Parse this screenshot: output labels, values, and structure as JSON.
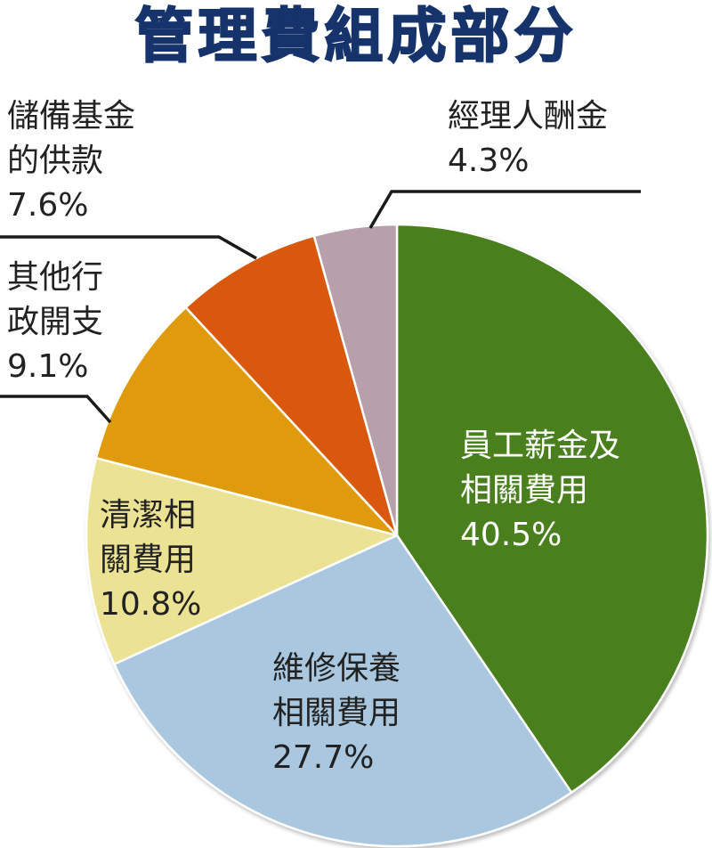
{
  "chart_data": {
    "type": "pie",
    "title": "管理費組成部分",
    "start": "12 o'clock, clockwise",
    "slices": [
      {
        "label_lines": [
          "員工薪金及",
          "相關費用"
        ],
        "value": 40.5,
        "value_text": "40.5%",
        "color": "#4a7f1c",
        "label_color": "#ffffff"
      },
      {
        "label_lines": [
          "維修保養",
          "相關費用"
        ],
        "value": 27.7,
        "value_text": "27.7%",
        "color": "#a9c7de",
        "label_color": "#222222"
      },
      {
        "label_lines": [
          "清潔相",
          "關費用"
        ],
        "value": 10.8,
        "value_text": "10.8%",
        "color": "#ebe293",
        "label_color": "#222222"
      },
      {
        "label_lines": [
          "其他行",
          "政開支"
        ],
        "value": 9.1,
        "value_text": "9.1%",
        "color": "#e09a0c",
        "label_color": "#222222"
      },
      {
        "label_lines": [
          "儲備基金",
          "的供款"
        ],
        "value": 7.6,
        "value_text": "7.6%",
        "color": "#d9580c",
        "label_color": "#222222"
      },
      {
        "label_lines": [
          "經理人酬金"
        ],
        "value": 4.3,
        "value_text": "4.3%",
        "color": "#b8a0ab",
        "label_color": "#222222"
      }
    ]
  }
}
